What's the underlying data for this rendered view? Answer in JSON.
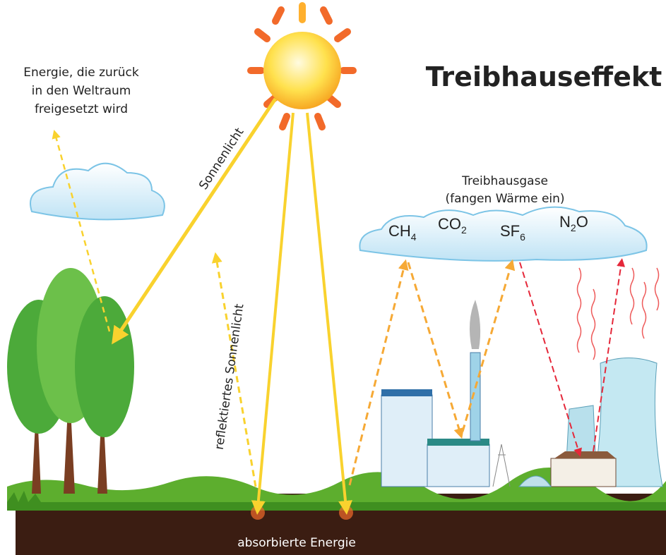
{
  "title": "Treibhauseffekt",
  "space_label": {
    "lines": [
      "Energie, die zurück",
      "in den Weltraum",
      "freigesetzt wird"
    ]
  },
  "sunlight_label": "Sonnenlicht",
  "reflected_label": "reflektiertes Sonnenlicht",
  "gases_label": {
    "lines": [
      "Treibhausgase",
      "(fangen Wärme ein)"
    ]
  },
  "gases": [
    {
      "text": "CH",
      "sub": "4"
    },
    {
      "text": "CO",
      "sub": "2"
    },
    {
      "text": "SF",
      "sub": "6"
    },
    {
      "text": "N",
      "sub": "2",
      "after": "O"
    }
  ],
  "ground_label": "absorbierte Energie"
}
